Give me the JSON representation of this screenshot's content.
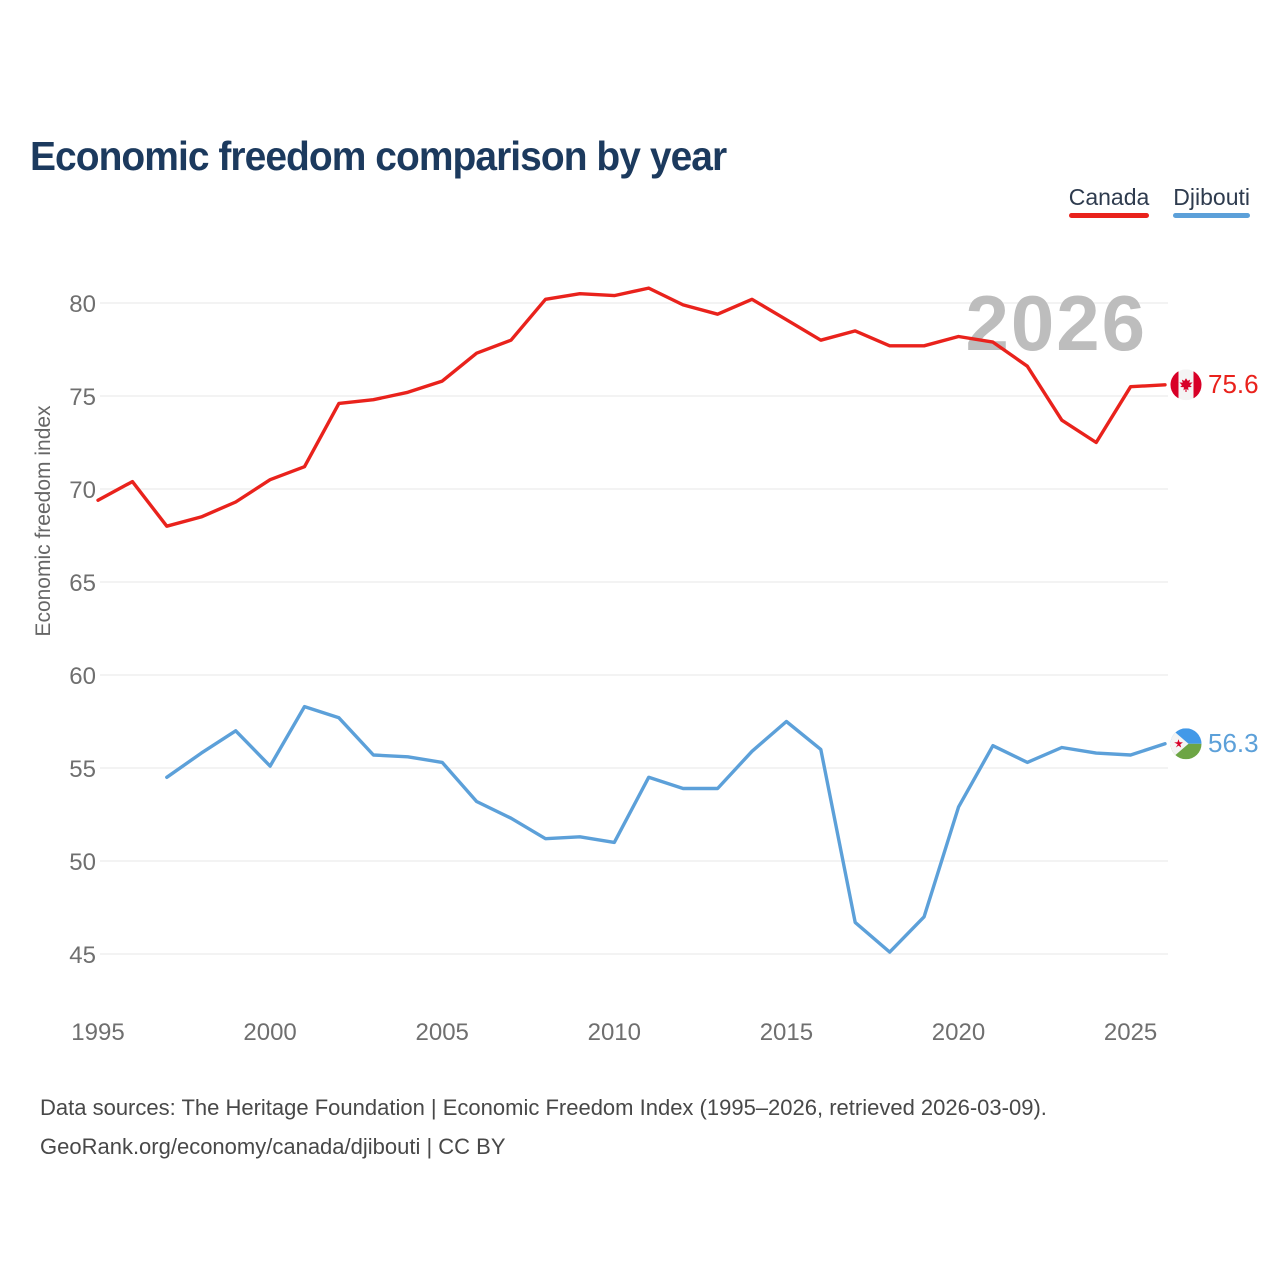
{
  "title": "Economic freedom comparison by year",
  "watermark": "2026",
  "legend": {
    "items": [
      {
        "label": "Canada",
        "color": "#e9221c"
      },
      {
        "label": "Djibouti",
        "color": "#5ca0d9"
      }
    ]
  },
  "end_labels": {
    "canada": "75.6",
    "djibouti": "56.3"
  },
  "footer": {
    "line1": "Data sources: The Heritage Foundation | Economic Freedom Index (1995–2026, retrieved 2026-03-09).",
    "line2": "GeoRank.org/economy/canada/djibouti | CC BY"
  },
  "chart_data": {
    "type": "line",
    "title": "Economic freedom comparison by year",
    "xlabel": "",
    "ylabel": "Economic freedom index",
    "xlim": [
      1995,
      2026
    ],
    "ylim": [
      43,
      82
    ],
    "x_ticks": [
      1995,
      2000,
      2005,
      2010,
      2015,
      2020,
      2025
    ],
    "y_ticks": [
      45,
      50,
      55,
      60,
      65,
      70,
      75,
      80
    ],
    "grid": "horizontal-only",
    "legend_position": "top-right",
    "watermark": "2026",
    "series": [
      {
        "name": "Canada",
        "color": "#e9221c",
        "end_label": "75.6",
        "years": [
          1995,
          1996,
          1997,
          1998,
          1999,
          2000,
          2001,
          2002,
          2003,
          2004,
          2005,
          2006,
          2007,
          2008,
          2009,
          2010,
          2011,
          2012,
          2013,
          2014,
          2015,
          2016,
          2017,
          2018,
          2019,
          2020,
          2021,
          2022,
          2023,
          2024,
          2025,
          2026
        ],
        "values": [
          69.4,
          70.4,
          68.0,
          68.5,
          69.3,
          70.5,
          71.2,
          74.6,
          74.8,
          75.2,
          75.8,
          77.3,
          78.0,
          80.2,
          80.5,
          80.4,
          80.8,
          79.9,
          79.4,
          80.2,
          79.1,
          78.0,
          78.5,
          77.7,
          77.7,
          78.2,
          77.9,
          76.6,
          73.7,
          72.5,
          75.5,
          75.6
        ]
      },
      {
        "name": "Djibouti",
        "color": "#5ca0d9",
        "end_label": "56.3",
        "years": [
          1997,
          1998,
          1999,
          2000,
          2001,
          2002,
          2003,
          2004,
          2005,
          2006,
          2007,
          2008,
          2009,
          2010,
          2011,
          2012,
          2013,
          2014,
          2015,
          2016,
          2017,
          2018,
          2019,
          2020,
          2021,
          2022,
          2023,
          2024,
          2025,
          2026
        ],
        "values": [
          54.5,
          55.8,
          57.0,
          55.1,
          58.3,
          57.7,
          55.7,
          55.6,
          55.3,
          53.2,
          52.3,
          51.2,
          51.3,
          51.0,
          54.5,
          53.9,
          53.9,
          55.9,
          57.5,
          56.0,
          46.7,
          45.1,
          47.0,
          52.9,
          56.2,
          55.3,
          56.1,
          55.8,
          55.7,
          56.3
        ]
      }
    ]
  }
}
